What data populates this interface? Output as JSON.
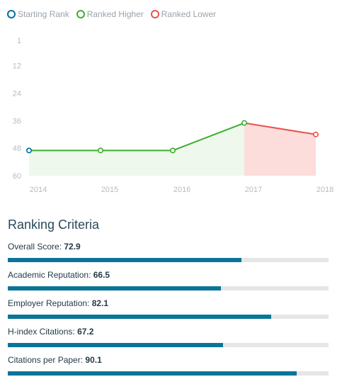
{
  "legend": [
    {
      "label": "Starting Rank",
      "color": "#006ea0"
    },
    {
      "label": "Ranked Higher",
      "color": "#3cae2f"
    },
    {
      "label": "Ranked Lower",
      "color": "#e8524f"
    }
  ],
  "chart_data": {
    "type": "line",
    "x": [
      "2014",
      "2015",
      "2016",
      "2017",
      "2018"
    ],
    "y_ticks": [
      1,
      12,
      24,
      36,
      48,
      60
    ],
    "ylim": [
      60,
      1
    ],
    "y_inverted": true,
    "series": [
      {
        "values": [
          49,
          49,
          49,
          37,
          42
        ]
      }
    ],
    "point_types": [
      "start",
      "higher",
      "higher",
      "higher",
      "lower"
    ],
    "colors": {
      "start": "#006ea0",
      "higher": "#3cae2f",
      "lower": "#e8524f",
      "higher_fill": "#eef8ec",
      "lower_fill": "#fddcdc"
    },
    "grid": false
  },
  "criteria": {
    "title": "Ranking Criteria",
    "max": 100,
    "items": [
      {
        "label": "Overall Score:",
        "value": "72.9"
      },
      {
        "label": "Academic Reputation:",
        "value": "66.5"
      },
      {
        "label": "Employer Reputation:",
        "value": "82.1"
      },
      {
        "label": "H-index Citations:",
        "value": "67.2"
      },
      {
        "label": "Citations per Paper:",
        "value": "90.1"
      }
    ]
  }
}
